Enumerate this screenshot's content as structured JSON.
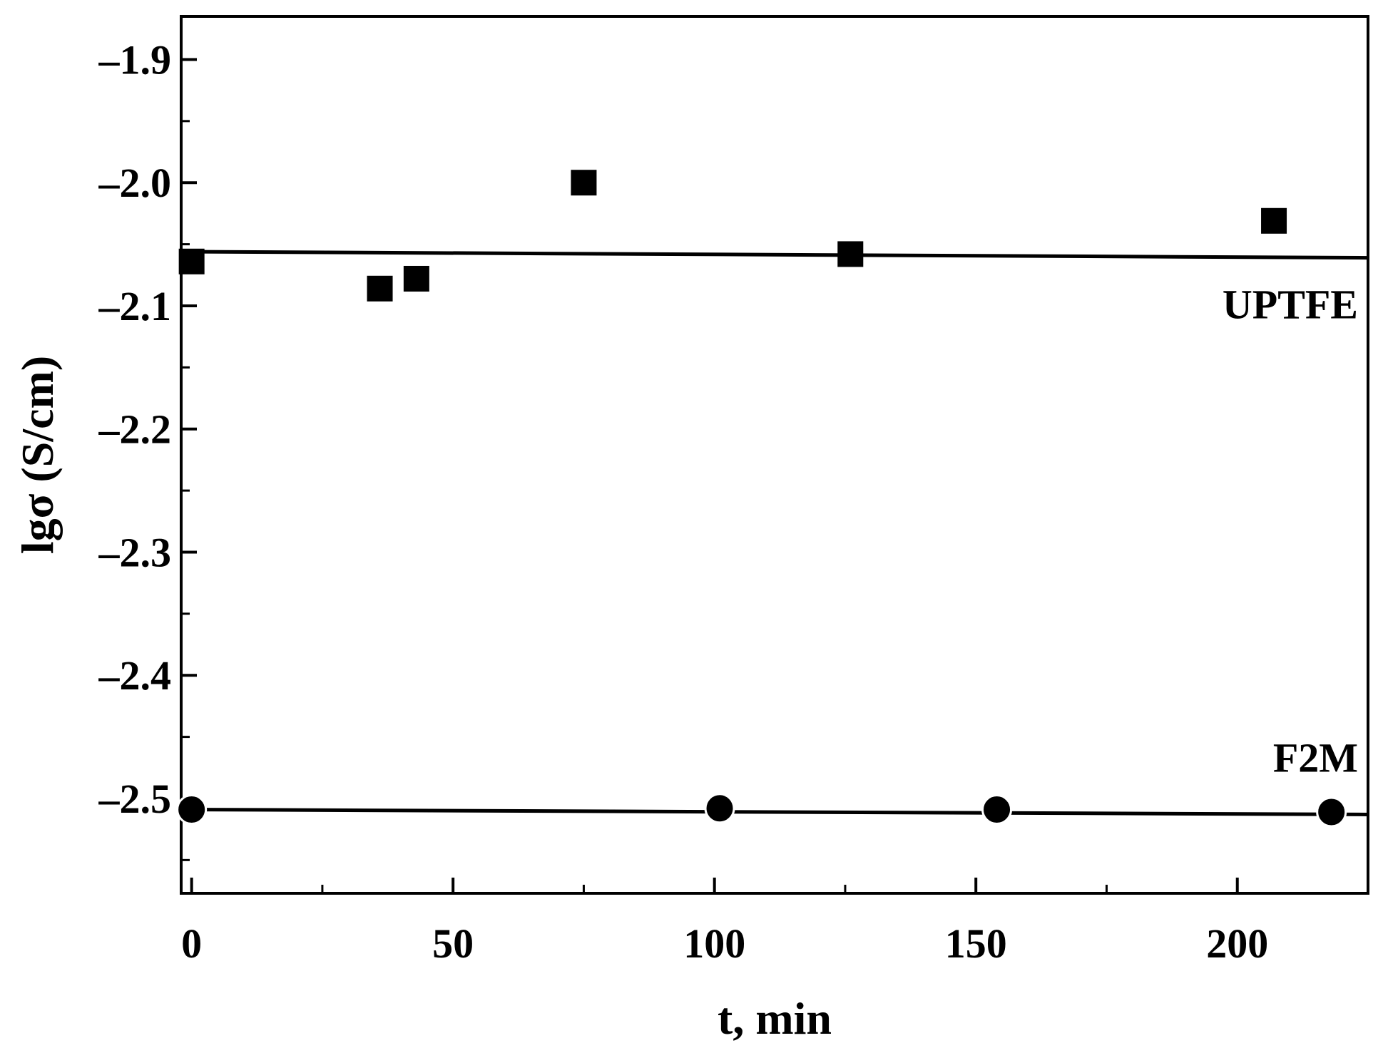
{
  "chart_data": {
    "type": "scatter",
    "title": "",
    "xlabel": "t, min",
    "ylabel": "lgσ (S/cm)",
    "xlim": [
      -2,
      225
    ],
    "ylim": [
      -2.577,
      -1.865
    ],
    "x_ticks": [
      0,
      50,
      100,
      150,
      200
    ],
    "x_tick_labels": [
      "0",
      "50",
      "100",
      "150",
      "200"
    ],
    "y_ticks": [
      -1.9,
      -2.0,
      -2.1,
      -2.2,
      -2.3,
      -2.4,
      -2.5
    ],
    "y_tick_labels": [
      "–1.9",
      "–2.0",
      "–2.1",
      "–2.2",
      "–2.3",
      "–2.4",
      "–2.5"
    ],
    "grid": false,
    "legend": "none",
    "series": [
      {
        "name": "UPTFE",
        "marker": "square",
        "color": "#000000",
        "points": [
          {
            "x": 0,
            "y": -2.064
          },
          {
            "x": 36,
            "y": -2.086
          },
          {
            "x": 43,
            "y": -2.078
          },
          {
            "x": 75,
            "y": -2.0
          },
          {
            "x": 126,
            "y": -2.058
          },
          {
            "x": 207,
            "y": -2.031
          }
        ],
        "fit": [
          {
            "x": -2,
            "y": -2.056
          },
          {
            "x": 225,
            "y": -2.061
          }
        ]
      },
      {
        "name": "F2M",
        "marker": "circle",
        "color": "#000000",
        "points": [
          {
            "x": 0,
            "y": -2.509
          },
          {
            "x": 101,
            "y": -2.508
          },
          {
            "x": 154,
            "y": -2.509
          },
          {
            "x": 218,
            "y": -2.511
          }
        ],
        "fit": [
          {
            "x": -2,
            "y": -2.509
          },
          {
            "x": 225,
            "y": -2.513
          }
        ]
      }
    ]
  }
}
